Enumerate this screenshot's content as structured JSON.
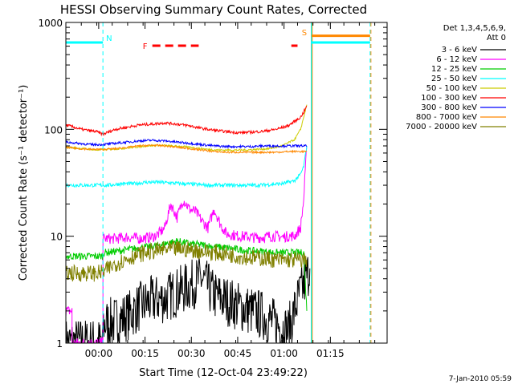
{
  "chart_data": {
    "type": "line",
    "title": "HESSI Observing Summary Count Rates, Corrected",
    "xlabel": "Start Time (12-Oct-04 23:49:22)",
    "ylabel": "Corrected Count Rate (s⁻¹ detector⁻¹)",
    "x_units": "minutes since 12-Oct-04 23:49:22",
    "xlim": [
      0,
      104
    ],
    "ylim": [
      1,
      1000
    ],
    "y_scale": "log",
    "x_tick_labels": [
      "00:00",
      "00:15",
      "00:30",
      "00:45",
      "01:00",
      "01:15"
    ],
    "y_tick_labels": [
      "1",
      "10",
      "100",
      "1000"
    ],
    "legend_position": "right",
    "legend_header": [
      "Det 1,3,4,5,6,9,",
      "Att 0"
    ],
    "timestamp": "7-Jan-2010 05:59",
    "annotations": {
      "night_label": "N",
      "saa_label": "S",
      "flare_label": "F"
    },
    "series": [
      {
        "name": "3 - 6 keV",
        "color": "#000000",
        "x": [
          0,
          12,
          12,
          16,
          20,
          24,
          28,
          32,
          36,
          40,
          44,
          48,
          52,
          56,
          60,
          64,
          68,
          72,
          75,
          77,
          79
        ],
        "y": [
          1,
          1,
          1.5,
          1.6,
          1.8,
          2.2,
          2.5,
          2.6,
          3.0,
          3.4,
          4.0,
          2.8,
          2.5,
          2.2,
          2.0,
          1.8,
          1.5,
          1.3,
          2.5,
          3.5,
          5.0
        ]
      },
      {
        "name": "6 - 12 keV",
        "color": "#ff00ff",
        "x": [
          0,
          2,
          2,
          12,
          12,
          16,
          20,
          24,
          28,
          30,
          32,
          34,
          36,
          38,
          40,
          42,
          44,
          46,
          48,
          50,
          52,
          54,
          56,
          58,
          60,
          62,
          64,
          66,
          68,
          70,
          72,
          74,
          76,
          77,
          78
        ],
        "y": [
          2,
          2,
          1,
          1,
          9.5,
          9.5,
          9.8,
          9.5,
          9.8,
          10.5,
          12,
          20,
          15,
          22,
          18,
          17,
          14,
          12,
          18,
          13,
          10.5,
          10.3,
          10,
          10,
          9.8,
          9.7,
          9.8,
          10,
          10,
          9.8,
          10,
          10,
          12,
          22,
          70
        ]
      },
      {
        "name": "12 - 25 keV",
        "color": "#00cc00",
        "x": [
          0,
          5,
          10,
          12,
          12,
          16,
          20,
          24,
          28,
          32,
          36,
          40,
          44,
          48,
          52,
          56,
          60,
          64,
          68,
          72,
          76,
          77,
          78
        ],
        "y": [
          6.5,
          6.5,
          6.5,
          6.5,
          7.0,
          7.2,
          7.5,
          7.8,
          8.0,
          8.5,
          9.0,
          8.5,
          8.3,
          8.0,
          7.8,
          7.5,
          7.3,
          7.2,
          7.0,
          7.0,
          7.0,
          7.0,
          2.0
        ]
      },
      {
        "name": "25 - 50 keV",
        "color": "#00ffff",
        "x": [
          0,
          6,
          10,
          14,
          18,
          22,
          26,
          30,
          34,
          38,
          42,
          46,
          50,
          54,
          58,
          62,
          66,
          70,
          74,
          76,
          77,
          78
        ],
        "y": [
          30,
          30,
          30,
          30,
          31,
          31,
          32,
          32,
          31.5,
          31,
          30.5,
          30,
          30,
          30,
          30,
          30,
          30.5,
          31,
          33,
          38,
          45,
          70
        ]
      },
      {
        "name": "50 - 100 keV",
        "color": "#cccc00",
        "x": [
          0,
          6,
          10,
          14,
          18,
          22,
          26,
          30,
          34,
          38,
          42,
          46,
          50,
          54,
          58,
          62,
          66,
          70,
          74,
          76,
          77,
          78
        ],
        "y": [
          68,
          66,
          64,
          65,
          66,
          68,
          70,
          71,
          70,
          69,
          67,
          65,
          64,
          64,
          64,
          65,
          66,
          70,
          80,
          100,
          130,
          170
        ]
      },
      {
        "name": "100 - 300 keV",
        "color": "#ff0000",
        "x": [
          0,
          5,
          10,
          12,
          16,
          20,
          24,
          28,
          32,
          36,
          40,
          44,
          48,
          52,
          56,
          60,
          64,
          68,
          72,
          76,
          77,
          78
        ],
        "y": [
          110,
          100,
          95,
          90,
          100,
          105,
          110,
          112,
          115,
          112,
          108,
          102,
          98,
          95,
          93,
          94,
          96,
          100,
          108,
          130,
          145,
          165
        ]
      },
      {
        "name": "300 - 800 keV",
        "color": "#0000ff",
        "x": [
          0,
          4,
          8,
          12,
          16,
          20,
          24,
          28,
          32,
          36,
          40,
          44,
          48,
          52,
          56,
          60,
          64,
          68,
          72,
          76,
          78
        ],
        "y": [
          76,
          74,
          72,
          72,
          74,
          76,
          78,
          79,
          78,
          76,
          74,
          72,
          70,
          69,
          69,
          69,
          70,
          70,
          70,
          70,
          70
        ]
      },
      {
        "name": "800 - 7000 keV",
        "color": "#ff8800",
        "x": [
          0,
          4,
          8,
          12,
          16,
          20,
          24,
          28,
          32,
          36,
          40,
          44,
          48,
          52,
          56,
          60,
          64,
          68,
          72,
          76,
          78
        ],
        "y": [
          68,
          66,
          65,
          65,
          66,
          68,
          70,
          71,
          70,
          68,
          66,
          64,
          62,
          61,
          61,
          61,
          61,
          61,
          62,
          62,
          62
        ]
      },
      {
        "name": "7000 - 20000 keV",
        "color": "#808000",
        "x": [
          0,
          5,
          10,
          12,
          16,
          20,
          24,
          28,
          32,
          36,
          40,
          44,
          48,
          52,
          56,
          60,
          64,
          68,
          72,
          76,
          78
        ],
        "y": [
          4.5,
          4.5,
          4.5,
          4.6,
          5.5,
          6.2,
          6.8,
          7.2,
          7.5,
          7.6,
          7.5,
          7.2,
          7.0,
          6.8,
          6.5,
          6.3,
          6.2,
          6.0,
          6.0,
          6.0,
          6.0
        ]
      }
    ],
    "markers": {
      "night_start": 12,
      "saa_start": 79.5,
      "night_dashed_end": 98.5,
      "flare_dash_range": [
        28,
        43
      ],
      "flare_dash_end_range": [
        73,
        75
      ],
      "saa_bar_value": 750,
      "night_bar_value": 650
    }
  }
}
